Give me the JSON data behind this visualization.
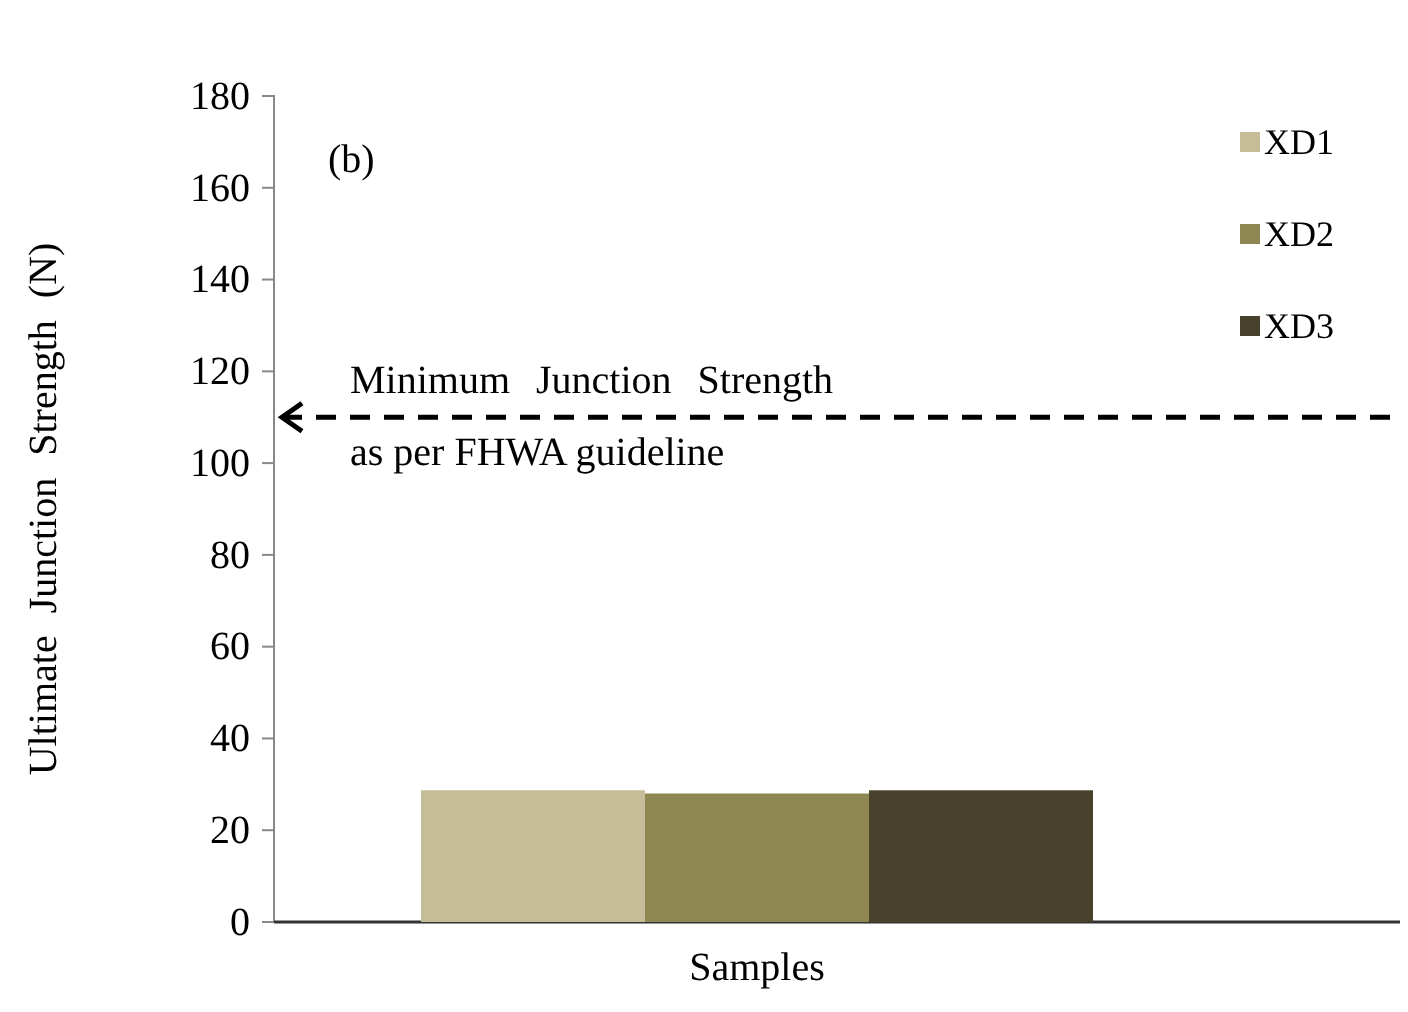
{
  "chart_data": {
    "type": "bar",
    "categories": [
      "Samples"
    ],
    "series": [
      {
        "name": "XD1",
        "color": "#c4bd97",
        "values": [
          28.7
        ]
      },
      {
        "name": "XD2",
        "color": "#8f8752",
        "values": [
          28
        ]
      },
      {
        "name": "XD3",
        "color": "#48422c",
        "values": [
          28.7
        ]
      }
    ],
    "ylabel": "Ultimate Junction Strength (N)",
    "ylim": [
      0,
      180
    ],
    "yticks": [
      0,
      20,
      40,
      60,
      80,
      100,
      120,
      140,
      160,
      180
    ],
    "ref_lines": [
      {
        "axis": "y",
        "value": 110,
        "label": "Minimum Junction Strength as per FHWA guideline",
        "color": "#000000",
        "line_style": "dashed"
      }
    ],
    "annotations": [
      "(b)"
    ],
    "legend": "top right",
    "grid": false
  }
}
